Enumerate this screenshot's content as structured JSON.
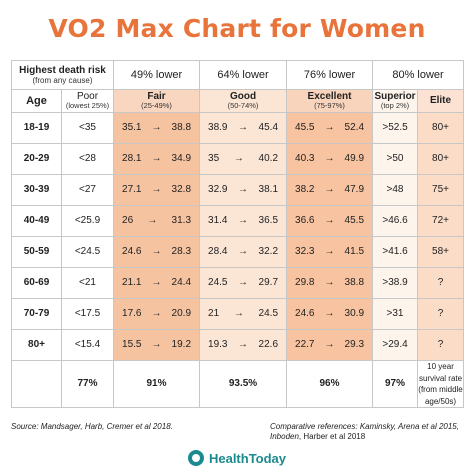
{
  "title": "VO2 Max Chart for Women",
  "risk_header": {
    "title": "Highest death risk",
    "subtitle": "(from any cause)"
  },
  "tiers": [
    "49% lower",
    "64% lower",
    "76% lower",
    "80% lower"
  ],
  "columns": {
    "age": "Age",
    "poor": {
      "label": "Poor",
      "sub": "(lowest 25%)"
    },
    "fair": {
      "label": "Fair",
      "sub": "(25-49%)"
    },
    "good": {
      "label": "Good",
      "sub": "(50-74%)"
    },
    "excellent": {
      "label": "Excellent",
      "sub": "(75-97%)"
    },
    "superior": {
      "label": "Superior",
      "sub": "(top 2%)"
    },
    "elite": {
      "label": "Elite"
    }
  },
  "arrow": "→",
  "rows": [
    {
      "age": "18-19",
      "poor": "<35",
      "fair_lo": "35.1",
      "fair_hi": "38.8",
      "good_lo": "38.9",
      "good_hi": "45.4",
      "exc_lo": "45.5",
      "exc_hi": "52.4",
      "superior": ">52.5",
      "elite": "80+"
    },
    {
      "age": "20-29",
      "poor": "<28",
      "fair_lo": "28.1",
      "fair_hi": "34.9",
      "good_lo": "35",
      "good_hi": "40.2",
      "exc_lo": "40.3",
      "exc_hi": "49.9",
      "superior": ">50",
      "elite": "80+"
    },
    {
      "age": "30-39",
      "poor": "<27",
      "fair_lo": "27.1",
      "fair_hi": "32.8",
      "good_lo": "32.9",
      "good_hi": "38.1",
      "exc_lo": "38.2",
      "exc_hi": "47.9",
      "superior": ">48",
      "elite": "75+"
    },
    {
      "age": "40-49",
      "poor": "<25.9",
      "fair_lo": "26",
      "fair_hi": "31.3",
      "good_lo": "31.4",
      "good_hi": "36.5",
      "exc_lo": "36.6",
      "exc_hi": "45.5",
      "superior": ">46.6",
      "elite": "72+"
    },
    {
      "age": "50-59",
      "poor": "<24.5",
      "fair_lo": "24.6",
      "fair_hi": "28.3",
      "good_lo": "28.4",
      "good_hi": "32.2",
      "exc_lo": "32.3",
      "exc_hi": "41.5",
      "superior": ">41.6",
      "elite": "58+"
    },
    {
      "age": "60-69",
      "poor": "<21",
      "fair_lo": "21.1",
      "fair_hi": "24.4",
      "good_lo": "24.5",
      "good_hi": "29.7",
      "exc_lo": "29.8",
      "exc_hi": "38.8",
      "superior": ">38.9",
      "elite": "?"
    },
    {
      "age": "70-79",
      "poor": "<17.5",
      "fair_lo": "17.6",
      "fair_hi": "20.9",
      "good_lo": "21",
      "good_hi": "24.5",
      "exc_lo": "24.6",
      "exc_hi": "30.9",
      "superior": ">31",
      "elite": "?"
    },
    {
      "age": "80+",
      "poor": "<15.4",
      "fair_lo": "15.5",
      "fair_hi": "19.2",
      "good_lo": "19.3",
      "good_hi": "22.6",
      "exc_lo": "22.7",
      "exc_hi": "29.3",
      "superior": ">29.4",
      "elite": "?"
    }
  ],
  "footer": {
    "poor": "77%",
    "fair": "91%",
    "good": "93.5%",
    "excellent": "96%",
    "superior": "97%",
    "elite_note": "10 year survival rate (from middle age/50s)"
  },
  "source": "Source: Mandsager, Harb, Cremer et al 2018.",
  "refs": {
    "line1": "Comparative references: Kaminsky, Arena et al 2015,",
    "line2_italic": "Inboden",
    "line2_plain": ", Harber et al 2018"
  },
  "brand": "HealthToday",
  "colors": {
    "title": "#e8743b",
    "fair": "#f6c3a1",
    "good": "#fbe6d6",
    "excellent": "#f7c3a0",
    "elite": "#fbdcc7",
    "brand": "#1b8a8f"
  },
  "icons": {
    "brand": "healthtoday-logo-icon"
  }
}
